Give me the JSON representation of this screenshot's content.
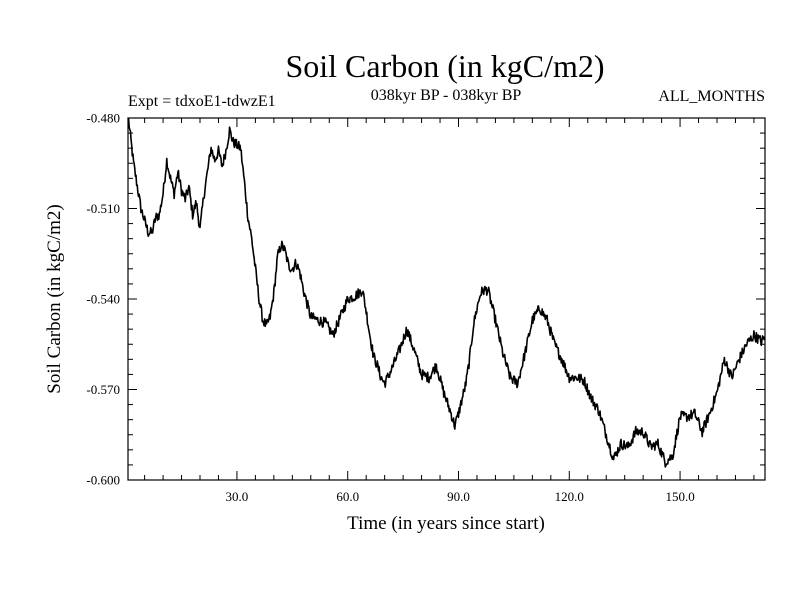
{
  "chart_data": {
    "type": "line",
    "title": "Soil Carbon (in kgC/m2)",
    "subtitle_left": "Expt = tdxoE1-tdwzE1",
    "subtitle_center": "038kyr BP - 038kyr BP",
    "subtitle_right": "ALL_MONTHS",
    "xlabel": "Time (in years since start)",
    "ylabel": "Soil Carbon (in kgC/m2)",
    "xlim": [
      0.5,
      173
    ],
    "ylim": [
      -0.6,
      -0.48
    ],
    "xticks": [
      30,
      60,
      90,
      120,
      150
    ],
    "xtick_labels": [
      "30.0",
      "60.0",
      "90.0",
      "120.0",
      "150.0"
    ],
    "yticks": [
      -0.48,
      -0.51,
      -0.54,
      -0.57,
      -0.6
    ],
    "ytick_labels": [
      "-0.480",
      "-0.510",
      "-0.540",
      "-0.570",
      "-0.600"
    ],
    "line_color": "#000000",
    "series": [
      {
        "name": "tdxoE1-tdwzE1",
        "x": [
          0.5,
          2,
          4,
          6,
          7,
          8,
          9,
          10,
          11,
          12,
          13,
          14,
          15,
          16,
          17,
          18,
          19,
          20,
          21,
          22,
          23,
          24,
          25,
          26,
          27,
          28,
          29,
          30,
          31,
          32,
          33,
          34,
          35,
          36,
          37,
          38,
          39,
          40,
          41,
          42,
          43,
          44,
          45,
          46,
          47,
          48,
          50,
          52,
          54,
          56,
          58,
          60,
          62,
          64,
          65,
          66,
          67,
          68,
          69,
          70,
          72,
          74,
          76,
          78,
          80,
          82,
          84,
          86,
          88,
          89,
          90,
          91,
          92,
          93,
          94,
          95,
          96,
          97,
          98,
          99,
          100,
          102,
          104,
          106,
          108,
          110,
          112,
          114,
          116,
          118,
          120,
          122,
          124,
          126,
          128,
          130,
          132,
          134,
          136,
          138,
          140,
          142,
          144,
          146,
          148,
          150,
          152,
          154,
          156,
          158,
          160,
          162,
          164,
          166,
          168,
          170,
          172,
          173
        ],
        "y": [
          -0.479,
          -0.495,
          -0.51,
          -0.518,
          -0.518,
          -0.513,
          -0.512,
          -0.505,
          -0.494,
          -0.5,
          -0.505,
          -0.498,
          -0.504,
          -0.507,
          -0.503,
          -0.512,
          -0.508,
          -0.517,
          -0.506,
          -0.498,
          -0.49,
          -0.494,
          -0.491,
          -0.496,
          -0.491,
          -0.484,
          -0.488,
          -0.489,
          -0.49,
          -0.501,
          -0.513,
          -0.52,
          -0.53,
          -0.54,
          -0.547,
          -0.549,
          -0.546,
          -0.538,
          -0.526,
          -0.522,
          -0.524,
          -0.529,
          -0.53,
          -0.528,
          -0.531,
          -0.537,
          -0.546,
          -0.547,
          -0.548,
          -0.552,
          -0.546,
          -0.54,
          -0.539,
          -0.537,
          -0.544,
          -0.552,
          -0.559,
          -0.562,
          -0.566,
          -0.568,
          -0.563,
          -0.557,
          -0.55,
          -0.557,
          -0.565,
          -0.566,
          -0.562,
          -0.571,
          -0.578,
          -0.582,
          -0.578,
          -0.573,
          -0.568,
          -0.56,
          -0.549,
          -0.543,
          -0.538,
          -0.537,
          -0.537,
          -0.542,
          -0.547,
          -0.558,
          -0.566,
          -0.568,
          -0.558,
          -0.547,
          -0.543,
          -0.547,
          -0.555,
          -0.56,
          -0.566,
          -0.566,
          -0.567,
          -0.573,
          -0.577,
          -0.585,
          -0.593,
          -0.588,
          -0.589,
          -0.584,
          -0.584,
          -0.589,
          -0.588,
          -0.594,
          -0.592,
          -0.579,
          -0.579,
          -0.578,
          -0.584,
          -0.578,
          -0.571,
          -0.56,
          -0.566,
          -0.56,
          -0.555,
          -0.552,
          -0.554,
          -0.553
        ]
      }
    ]
  }
}
